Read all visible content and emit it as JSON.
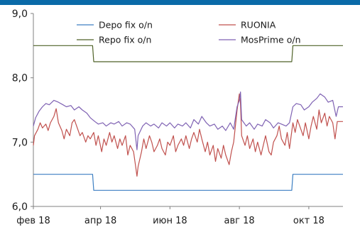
{
  "chart_data": {
    "type": "line",
    "title": "",
    "xlabel": "",
    "ylabel": "",
    "ylim": [
      6.0,
      9.0
    ],
    "yticks": [
      6.0,
      7.0,
      8.0,
      9.0
    ],
    "ytick_labels": [
      "6,0",
      "7,0",
      "8,0",
      "9,0"
    ],
    "x_start": "2018-02-01",
    "x_end": "2018-10-31",
    "xtick_dates": [
      "2018-02-01",
      "2018-04-01",
      "2018-06-01",
      "2018-08-01",
      "2018-10-01"
    ],
    "xtick_labels": [
      "фев 18",
      "апр 18",
      "июн 18",
      "авг 18",
      "окт 18"
    ],
    "grid": false,
    "legend": "top",
    "series": [
      {
        "name": "Depo fix o/n",
        "color": "#3d7fc2",
        "points": [
          [
            "2018-02-01",
            6.5
          ],
          [
            "2018-03-25",
            6.5
          ],
          [
            "2018-03-26",
            6.25
          ],
          [
            "2018-09-16",
            6.25
          ],
          [
            "2018-09-17",
            6.5
          ],
          [
            "2018-10-31",
            6.5
          ]
        ]
      },
      {
        "name": "RUONIA",
        "color": "#c0504d",
        "points": [
          [
            "2018-02-01",
            6.95
          ],
          [
            "2018-02-02",
            7.1
          ],
          [
            "2018-02-05",
            7.2
          ],
          [
            "2018-02-07",
            7.3
          ],
          [
            "2018-02-09",
            7.22
          ],
          [
            "2018-02-12",
            7.28
          ],
          [
            "2018-02-14",
            7.18
          ],
          [
            "2018-02-16",
            7.3
          ],
          [
            "2018-02-19",
            7.4
          ],
          [
            "2018-02-21",
            7.52
          ],
          [
            "2018-02-23",
            7.3
          ],
          [
            "2018-02-26",
            7.18
          ],
          [
            "2018-02-28",
            7.05
          ],
          [
            "2018-03-02",
            7.2
          ],
          [
            "2018-03-05",
            7.1
          ],
          [
            "2018-03-07",
            7.3
          ],
          [
            "2018-03-09",
            7.35
          ],
          [
            "2018-03-12",
            7.2
          ],
          [
            "2018-03-14",
            7.1
          ],
          [
            "2018-03-16",
            7.15
          ],
          [
            "2018-03-19",
            7.0
          ],
          [
            "2018-03-21",
            7.1
          ],
          [
            "2018-03-23",
            7.05
          ],
          [
            "2018-03-26",
            7.15
          ],
          [
            "2018-03-28",
            6.95
          ],
          [
            "2018-03-30",
            7.1
          ],
          [
            "2018-04-02",
            6.85
          ],
          [
            "2018-04-04",
            7.05
          ],
          [
            "2018-04-06",
            6.95
          ],
          [
            "2018-04-09",
            7.15
          ],
          [
            "2018-04-11",
            7.0
          ],
          [
            "2018-04-13",
            7.1
          ],
          [
            "2018-04-16",
            6.9
          ],
          [
            "2018-04-18",
            7.05
          ],
          [
            "2018-04-20",
            6.95
          ],
          [
            "2018-04-23",
            7.1
          ],
          [
            "2018-04-25",
            6.8
          ],
          [
            "2018-04-27",
            6.95
          ],
          [
            "2018-04-30",
            6.85
          ],
          [
            "2018-05-02",
            6.6
          ],
          [
            "2018-05-03",
            6.47
          ],
          [
            "2018-05-04",
            6.62
          ],
          [
            "2018-05-07",
            6.85
          ],
          [
            "2018-05-09",
            7.05
          ],
          [
            "2018-05-11",
            6.9
          ],
          [
            "2018-05-14",
            7.1
          ],
          [
            "2018-05-16",
            7.0
          ],
          [
            "2018-05-18",
            6.85
          ],
          [
            "2018-05-21",
            6.95
          ],
          [
            "2018-05-23",
            7.05
          ],
          [
            "2018-05-25",
            6.9
          ],
          [
            "2018-05-28",
            6.8
          ],
          [
            "2018-05-30",
            7.0
          ],
          [
            "2018-06-01",
            6.95
          ],
          [
            "2018-06-04",
            7.1
          ],
          [
            "2018-06-06",
            6.85
          ],
          [
            "2018-06-08",
            6.95
          ],
          [
            "2018-06-11",
            7.05
          ],
          [
            "2018-06-13",
            6.95
          ],
          [
            "2018-06-15",
            7.1
          ],
          [
            "2018-06-18",
            6.9
          ],
          [
            "2018-06-20",
            7.05
          ],
          [
            "2018-06-22",
            7.15
          ],
          [
            "2018-06-25",
            7.0
          ],
          [
            "2018-06-27",
            7.2
          ],
          [
            "2018-06-29",
            7.05
          ],
          [
            "2018-07-02",
            6.85
          ],
          [
            "2018-07-04",
            7.0
          ],
          [
            "2018-07-06",
            6.8
          ],
          [
            "2018-07-09",
            6.95
          ],
          [
            "2018-07-11",
            6.7
          ],
          [
            "2018-07-13",
            6.9
          ],
          [
            "2018-07-16",
            6.75
          ],
          [
            "2018-07-18",
            6.95
          ],
          [
            "2018-07-20",
            6.8
          ],
          [
            "2018-07-23",
            6.65
          ],
          [
            "2018-07-25",
            6.85
          ],
          [
            "2018-07-27",
            7.0
          ],
          [
            "2018-07-30",
            7.5
          ],
          [
            "2018-08-01",
            7.75
          ],
          [
            "2018-08-02",
            7.6
          ],
          [
            "2018-08-03",
            7.1
          ],
          [
            "2018-08-06",
            6.95
          ],
          [
            "2018-08-08",
            7.1
          ],
          [
            "2018-08-10",
            6.9
          ],
          [
            "2018-08-13",
            7.05
          ],
          [
            "2018-08-15",
            6.85
          ],
          [
            "2018-08-17",
            7.0
          ],
          [
            "2018-08-20",
            6.8
          ],
          [
            "2018-08-22",
            6.95
          ],
          [
            "2018-08-24",
            7.1
          ],
          [
            "2018-08-27",
            6.85
          ],
          [
            "2018-08-29",
            6.8
          ],
          [
            "2018-08-31",
            7.0
          ],
          [
            "2018-09-03",
            7.1
          ],
          [
            "2018-09-05",
            7.25
          ],
          [
            "2018-09-07",
            7.05
          ],
          [
            "2018-09-10",
            6.95
          ],
          [
            "2018-09-12",
            7.15
          ],
          [
            "2018-09-14",
            6.9
          ],
          [
            "2018-09-17",
            7.3
          ],
          [
            "2018-09-19",
            7.15
          ],
          [
            "2018-09-21",
            7.35
          ],
          [
            "2018-09-24",
            7.2
          ],
          [
            "2018-09-26",
            7.1
          ],
          [
            "2018-09-28",
            7.3
          ],
          [
            "2018-10-01",
            7.05
          ],
          [
            "2018-10-03",
            7.25
          ],
          [
            "2018-10-05",
            7.4
          ],
          [
            "2018-10-08",
            7.2
          ],
          [
            "2018-10-10",
            7.5
          ],
          [
            "2018-10-12",
            7.3
          ],
          [
            "2018-10-15",
            7.45
          ],
          [
            "2018-10-17",
            7.25
          ],
          [
            "2018-10-19",
            7.4
          ],
          [
            "2018-10-22",
            7.3
          ],
          [
            "2018-10-24",
            7.05
          ],
          [
            "2018-10-26",
            7.32
          ],
          [
            "2018-10-31",
            7.32
          ]
        ]
      },
      {
        "name": "Repo fix o/n",
        "color": "#4f6228",
        "points": [
          [
            "2018-02-01",
            8.5
          ],
          [
            "2018-03-25",
            8.5
          ],
          [
            "2018-03-26",
            8.25
          ],
          [
            "2018-09-16",
            8.25
          ],
          [
            "2018-09-17",
            8.5
          ],
          [
            "2018-10-31",
            8.5
          ]
        ]
      },
      {
        "name": "MosPrime o/n",
        "color": "#7f62b3",
        "points": [
          [
            "2018-02-01",
            7.25
          ],
          [
            "2018-02-03",
            7.38
          ],
          [
            "2018-02-06",
            7.48
          ],
          [
            "2018-02-09",
            7.55
          ],
          [
            "2018-02-12",
            7.6
          ],
          [
            "2018-02-15",
            7.58
          ],
          [
            "2018-02-19",
            7.65
          ],
          [
            "2018-02-23",
            7.62
          ],
          [
            "2018-02-27",
            7.58
          ],
          [
            "2018-03-02",
            7.55
          ],
          [
            "2018-03-06",
            7.57
          ],
          [
            "2018-03-09",
            7.5
          ],
          [
            "2018-03-13",
            7.55
          ],
          [
            "2018-03-16",
            7.5
          ],
          [
            "2018-03-20",
            7.45
          ],
          [
            "2018-03-23",
            7.38
          ],
          [
            "2018-03-27",
            7.32
          ],
          [
            "2018-03-30",
            7.28
          ],
          [
            "2018-04-03",
            7.3
          ],
          [
            "2018-04-06",
            7.25
          ],
          [
            "2018-04-10",
            7.3
          ],
          [
            "2018-04-13",
            7.28
          ],
          [
            "2018-04-17",
            7.32
          ],
          [
            "2018-04-20",
            7.25
          ],
          [
            "2018-04-24",
            7.3
          ],
          [
            "2018-04-27",
            7.28
          ],
          [
            "2018-05-01",
            7.2
          ],
          [
            "2018-05-03",
            6.88
          ],
          [
            "2018-05-04",
            7.1
          ],
          [
            "2018-05-08",
            7.25
          ],
          [
            "2018-05-11",
            7.3
          ],
          [
            "2018-05-15",
            7.25
          ],
          [
            "2018-05-18",
            7.28
          ],
          [
            "2018-05-22",
            7.22
          ],
          [
            "2018-05-25",
            7.3
          ],
          [
            "2018-05-29",
            7.25
          ],
          [
            "2018-06-01",
            7.3
          ],
          [
            "2018-06-05",
            7.22
          ],
          [
            "2018-06-08",
            7.28
          ],
          [
            "2018-06-12",
            7.25
          ],
          [
            "2018-06-15",
            7.3
          ],
          [
            "2018-06-19",
            7.22
          ],
          [
            "2018-06-22",
            7.35
          ],
          [
            "2018-06-26",
            7.28
          ],
          [
            "2018-06-29",
            7.4
          ],
          [
            "2018-07-03",
            7.3
          ],
          [
            "2018-07-06",
            7.25
          ],
          [
            "2018-07-10",
            7.28
          ],
          [
            "2018-07-13",
            7.2
          ],
          [
            "2018-07-17",
            7.25
          ],
          [
            "2018-07-20",
            7.18
          ],
          [
            "2018-07-24",
            7.3
          ],
          [
            "2018-07-27",
            7.2
          ],
          [
            "2018-07-30",
            7.55
          ],
          [
            "2018-08-01",
            7.65
          ],
          [
            "2018-08-02",
            7.78
          ],
          [
            "2018-08-03",
            7.35
          ],
          [
            "2018-08-07",
            7.25
          ],
          [
            "2018-08-10",
            7.3
          ],
          [
            "2018-08-14",
            7.2
          ],
          [
            "2018-08-17",
            7.28
          ],
          [
            "2018-08-21",
            7.25
          ],
          [
            "2018-08-24",
            7.35
          ],
          [
            "2018-08-28",
            7.3
          ],
          [
            "2018-08-31",
            7.22
          ],
          [
            "2018-09-04",
            7.3
          ],
          [
            "2018-09-07",
            7.28
          ],
          [
            "2018-09-11",
            7.25
          ],
          [
            "2018-09-14",
            7.3
          ],
          [
            "2018-09-17",
            7.55
          ],
          [
            "2018-09-20",
            7.6
          ],
          [
            "2018-09-24",
            7.58
          ],
          [
            "2018-09-27",
            7.5
          ],
          [
            "2018-10-01",
            7.55
          ],
          [
            "2018-10-04",
            7.62
          ],
          [
            "2018-10-08",
            7.68
          ],
          [
            "2018-10-11",
            7.75
          ],
          [
            "2018-10-15",
            7.7
          ],
          [
            "2018-10-18",
            7.62
          ],
          [
            "2018-10-22",
            7.65
          ],
          [
            "2018-10-25",
            7.4
          ],
          [
            "2018-10-27",
            7.55
          ],
          [
            "2018-10-31",
            7.55
          ]
        ]
      }
    ]
  }
}
